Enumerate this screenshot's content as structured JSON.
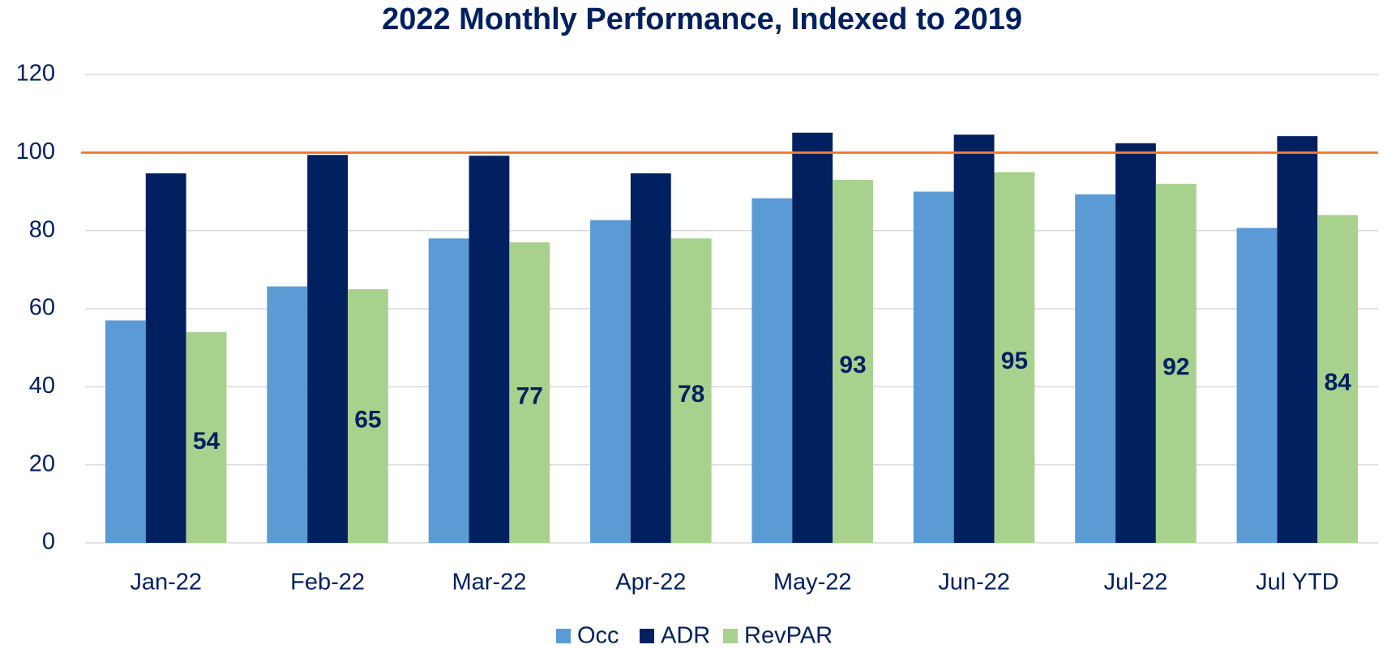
{
  "chart_data": {
    "type": "bar",
    "title": "2022 Monthly Performance, Indexed to 2019",
    "categories": [
      "Jan-22",
      "Feb-22",
      "Mar-22",
      "Apr-22",
      "May-22",
      "Jun-22",
      "Jul-22",
      "Jul YTD"
    ],
    "series": [
      {
        "name": "Occ",
        "color": "#5b9bd5",
        "values": [
          57,
          65.7,
          78,
          82.7,
          88.3,
          90,
          89.3,
          80.7
        ]
      },
      {
        "name": "ADR",
        "color": "#002060",
        "values": [
          94.7,
          99.4,
          99.2,
          94.7,
          105.1,
          104.6,
          102.4,
          104.2
        ]
      },
      {
        "name": "RevPAR",
        "color": "#a9d18e",
        "values": [
          54,
          65,
          77,
          78,
          93,
          95,
          92,
          84
        ],
        "data_labels": true
      }
    ],
    "reference_line": {
      "value": 100,
      "color": "#ed7d31"
    },
    "ylim": [
      0,
      120
    ],
    "yticks": [
      0,
      20,
      40,
      60,
      80,
      100,
      120
    ],
    "grid": true,
    "legend": "bottom"
  }
}
